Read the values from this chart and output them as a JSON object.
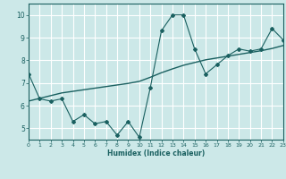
{
  "xlabel": "Humidex (Indice chaleur)",
  "ylabel": "",
  "bg_color": "#cce8e8",
  "line_color": "#1a6060",
  "grid_color": "#ffffff",
  "x_data": [
    0,
    1,
    2,
    3,
    4,
    5,
    6,
    7,
    8,
    9,
    10,
    11,
    12,
    13,
    14,
    15,
    16,
    17,
    18,
    19,
    20,
    21,
    22,
    23
  ],
  "y_main": [
    7.4,
    6.3,
    6.2,
    6.3,
    5.3,
    5.6,
    5.2,
    5.3,
    4.7,
    5.3,
    4.6,
    6.8,
    9.3,
    10.0,
    10.0,
    8.5,
    7.4,
    7.8,
    8.2,
    8.5,
    8.4,
    8.5,
    9.4,
    8.9
  ],
  "y_trend": [
    6.2,
    6.32,
    6.44,
    6.56,
    6.63,
    6.7,
    6.77,
    6.84,
    6.91,
    6.98,
    7.07,
    7.25,
    7.45,
    7.62,
    7.78,
    7.9,
    8.02,
    8.1,
    8.18,
    8.26,
    8.34,
    8.42,
    8.52,
    8.65
  ],
  "xlim": [
    0,
    23
  ],
  "ylim": [
    4.5,
    10.5
  ],
  "yticks": [
    5,
    6,
    7,
    8,
    9,
    10
  ],
  "xticks": [
    0,
    1,
    2,
    3,
    4,
    5,
    6,
    7,
    8,
    9,
    10,
    11,
    12,
    13,
    14,
    15,
    16,
    17,
    18,
    19,
    20,
    21,
    22,
    23
  ]
}
